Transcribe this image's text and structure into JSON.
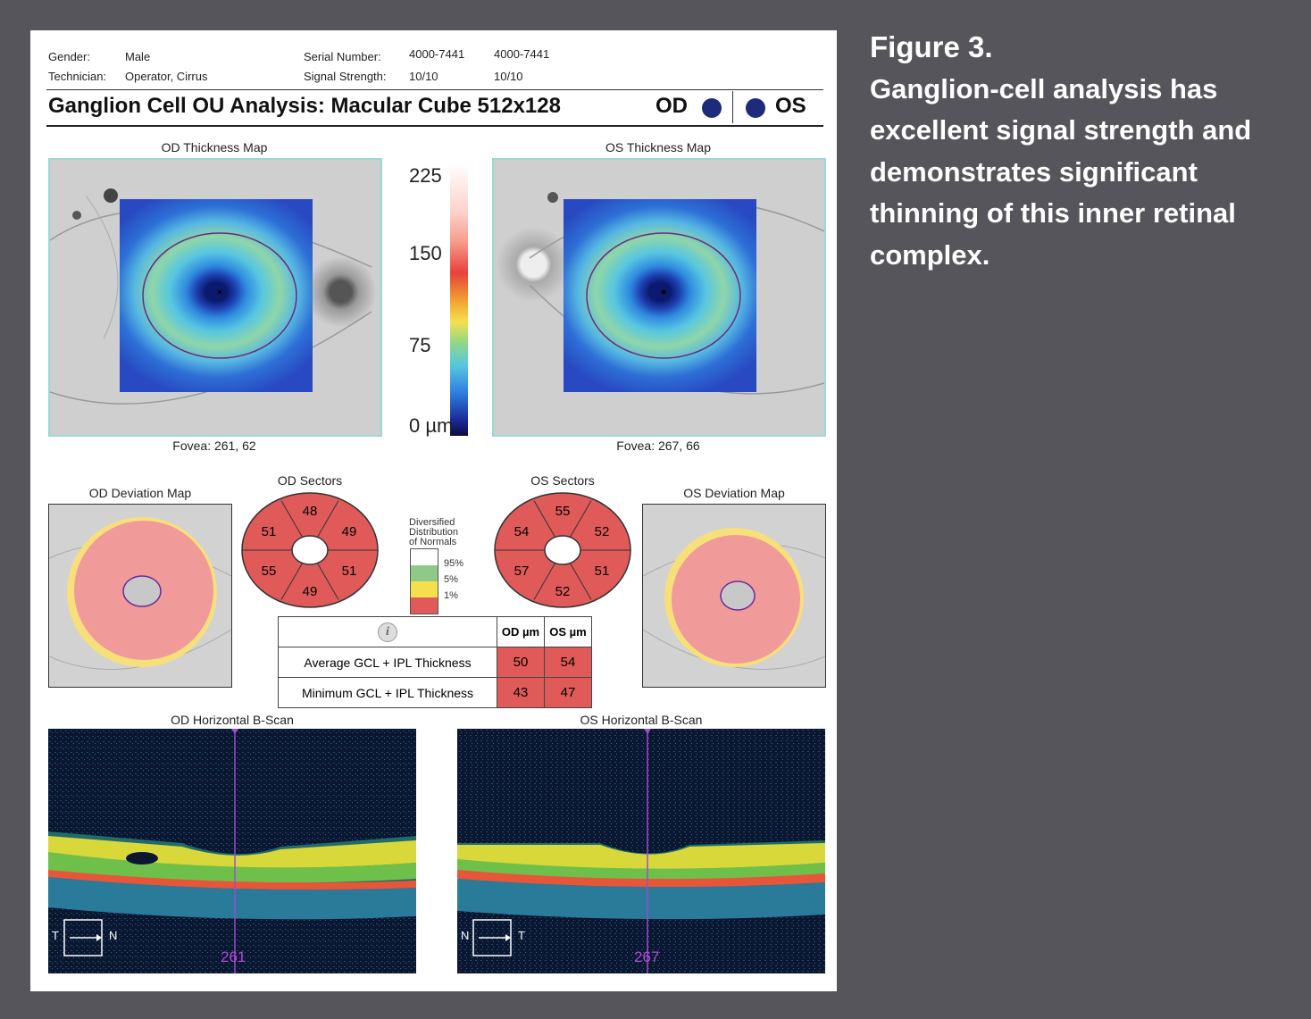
{
  "header": {
    "gender_label": "Gender:",
    "gender_value": "Male",
    "technician_label": "Technician:",
    "technician_value": "Operator, Cirrus",
    "serial_label": "Serial Number:",
    "serial_od": "4000-7441",
    "serial_os": "4000-7441",
    "signal_label": "Signal Strength:",
    "signal_od": "10/10",
    "signal_os": "10/10"
  },
  "title": "Ganglion Cell OU Analysis: Macular Cube 512x128",
  "eyes": {
    "od": "OD",
    "os": "OS"
  },
  "thickness_maps": {
    "od_title": "OD Thickness Map",
    "os_title": "OS Thickness Map",
    "od_fovea": "Fovea: 261, 62",
    "os_fovea": "Fovea: 267, 66"
  },
  "color_scale": {
    "labels": [
      "225",
      "150",
      "75",
      "0 µm"
    ]
  },
  "deviation_maps": {
    "od_title": "OD Deviation Map",
    "os_title": "OS Deviation Map"
  },
  "sectors": {
    "od_title": "OD Sectors",
    "os_title": "OS Sectors",
    "od_values": [
      "48",
      "49",
      "51",
      "49",
      "55",
      "51"
    ],
    "os_values": [
      "55",
      "52",
      "51",
      "52",
      "57",
      "54"
    ],
    "fill_color": "#e05a5a"
  },
  "normals_legend": {
    "title_lines": [
      "Diversified",
      "Distribution",
      "of Normals"
    ],
    "ticks": [
      "95%",
      "5%",
      "1%"
    ],
    "colors": [
      "#ffffff",
      "#8fc98a",
      "#f4e04d",
      "#e05a5a"
    ]
  },
  "table": {
    "info_icon": "i",
    "col_od": "OD µm",
    "col_os": "OS µm",
    "rows": [
      {
        "label": "Average GCL + IPL Thickness",
        "od": "50",
        "os": "54"
      },
      {
        "label": "Minimum GCL + IPL Thickness",
        "od": "43",
        "os": "47"
      }
    ]
  },
  "bscans": {
    "od_title": "OD Horizontal B-Scan",
    "os_title": "OS Horizontal B-Scan",
    "od_position": "261",
    "os_position": "267",
    "od_left": "T",
    "od_right": "N",
    "os_left": "N",
    "os_right": "T"
  },
  "caption": {
    "figure": "Figure 3.",
    "text": "Ganglion-cell analysis has excellent signal strength and demonstrates significant thinning of this inner retinal complex."
  }
}
